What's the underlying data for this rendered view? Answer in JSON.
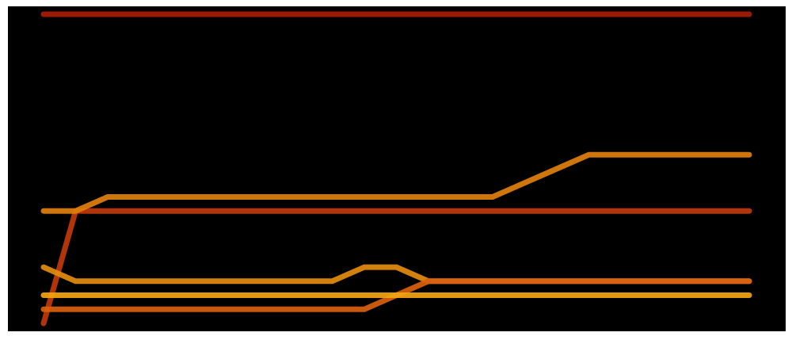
{
  "chart_data": {
    "type": "line",
    "style": "bump-chart",
    "background": "#000000",
    "x": [
      0,
      1,
      2,
      3,
      4,
      5,
      6,
      7,
      8,
      9,
      10,
      11,
      12,
      13,
      14,
      15,
      16,
      17,
      18,
      19,
      20,
      21,
      22
    ],
    "ylim": [
      0,
      22
    ],
    "grid": false,
    "legend": "none",
    "title": "",
    "xlabel": "",
    "ylabel": "",
    "series": [
      {
        "color": "#C1390A",
        "values": [
          0,
          8,
          8,
          8,
          8,
          8,
          8,
          8,
          8,
          8,
          8,
          8,
          8,
          8,
          8,
          8,
          8,
          8,
          8,
          8,
          8,
          8,
          8
        ]
      },
      {
        "color": "#E07F0C",
        "values": [
          8,
          8,
          9,
          9,
          9,
          9,
          9,
          9,
          9,
          9,
          9,
          9,
          9,
          9,
          9,
          10,
          11,
          12,
          12,
          12,
          12,
          12,
          12
        ]
      },
      {
        "color": "#A81C05",
        "values": [
          22,
          22,
          22,
          22,
          22,
          22,
          22,
          22,
          22,
          22,
          22,
          22,
          22,
          22,
          22,
          22,
          22,
          22,
          22,
          22,
          22,
          22,
          22
        ]
      },
      {
        "color": "#E48C0E",
        "values": [
          4,
          3,
          3,
          3,
          3,
          3,
          3,
          3,
          3,
          3,
          4,
          4,
          3,
          3,
          3,
          3,
          3,
          3,
          3,
          3,
          3,
          3,
          3
        ]
      },
      {
        "color": "#D9600C",
        "values": [
          1,
          1,
          1,
          1,
          1,
          1,
          1,
          1,
          1,
          1,
          1,
          2,
          3,
          3,
          3,
          3,
          3,
          3,
          3,
          3,
          3,
          3,
          3
        ]
      },
      {
        "color": "#F2A510",
        "values": [
          2,
          2,
          2,
          2,
          2,
          2,
          2,
          2,
          2,
          2,
          2,
          2,
          2,
          2,
          2,
          2,
          2,
          2,
          2,
          2,
          2,
          2,
          2
        ]
      }
    ]
  }
}
